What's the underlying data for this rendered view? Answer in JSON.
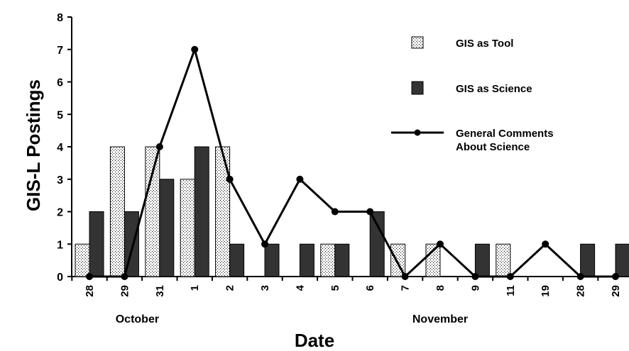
{
  "chart_data": {
    "type": "bar",
    "xlabel": "Date",
    "ylabel": "GIS-L Postings",
    "ylim": [
      0,
      8
    ],
    "yticks": [
      "0",
      "1",
      "2",
      "3",
      "4",
      "5",
      "6",
      "7",
      "8"
    ],
    "categories": [
      "28",
      "29",
      "31",
      "1",
      "2",
      "3",
      "4",
      "5",
      "6",
      "7",
      "8",
      "9",
      "11",
      "19",
      "28",
      "29"
    ],
    "month_labels": [
      {
        "label": "October",
        "category_index": 1
      },
      {
        "label": "November",
        "category_index": 10
      }
    ],
    "series": [
      {
        "name": "GIS as Tool",
        "kind": "bar",
        "pattern": "dotted",
        "values": [
          1,
          4,
          4,
          3,
          4,
          0,
          0,
          1,
          0,
          1,
          1,
          0,
          1,
          0,
          0,
          0
        ]
      },
      {
        "name": "GIS as Science",
        "kind": "bar",
        "color": "#333333",
        "values": [
          2,
          2,
          3,
          4,
          1,
          1,
          1,
          1,
          2,
          0,
          0,
          1,
          0,
          0,
          1,
          1
        ]
      },
      {
        "name": "General Comments\nAbout Science",
        "kind": "line",
        "color": "#000000",
        "values": [
          0,
          0,
          4,
          7,
          3,
          1,
          3,
          2,
          2,
          0,
          1,
          0,
          0,
          1,
          0,
          0
        ]
      }
    ],
    "legend": {
      "position": "top-right",
      "items": [
        {
          "label": "GIS as Tool",
          "icon": "dotted-square"
        },
        {
          "label": "GIS as Science",
          "icon": "dark-square"
        },
        {
          "label_lines": [
            "General Comments",
            "About Science"
          ],
          "icon": "line-with-dot"
        }
      ]
    },
    "grid": false
  }
}
